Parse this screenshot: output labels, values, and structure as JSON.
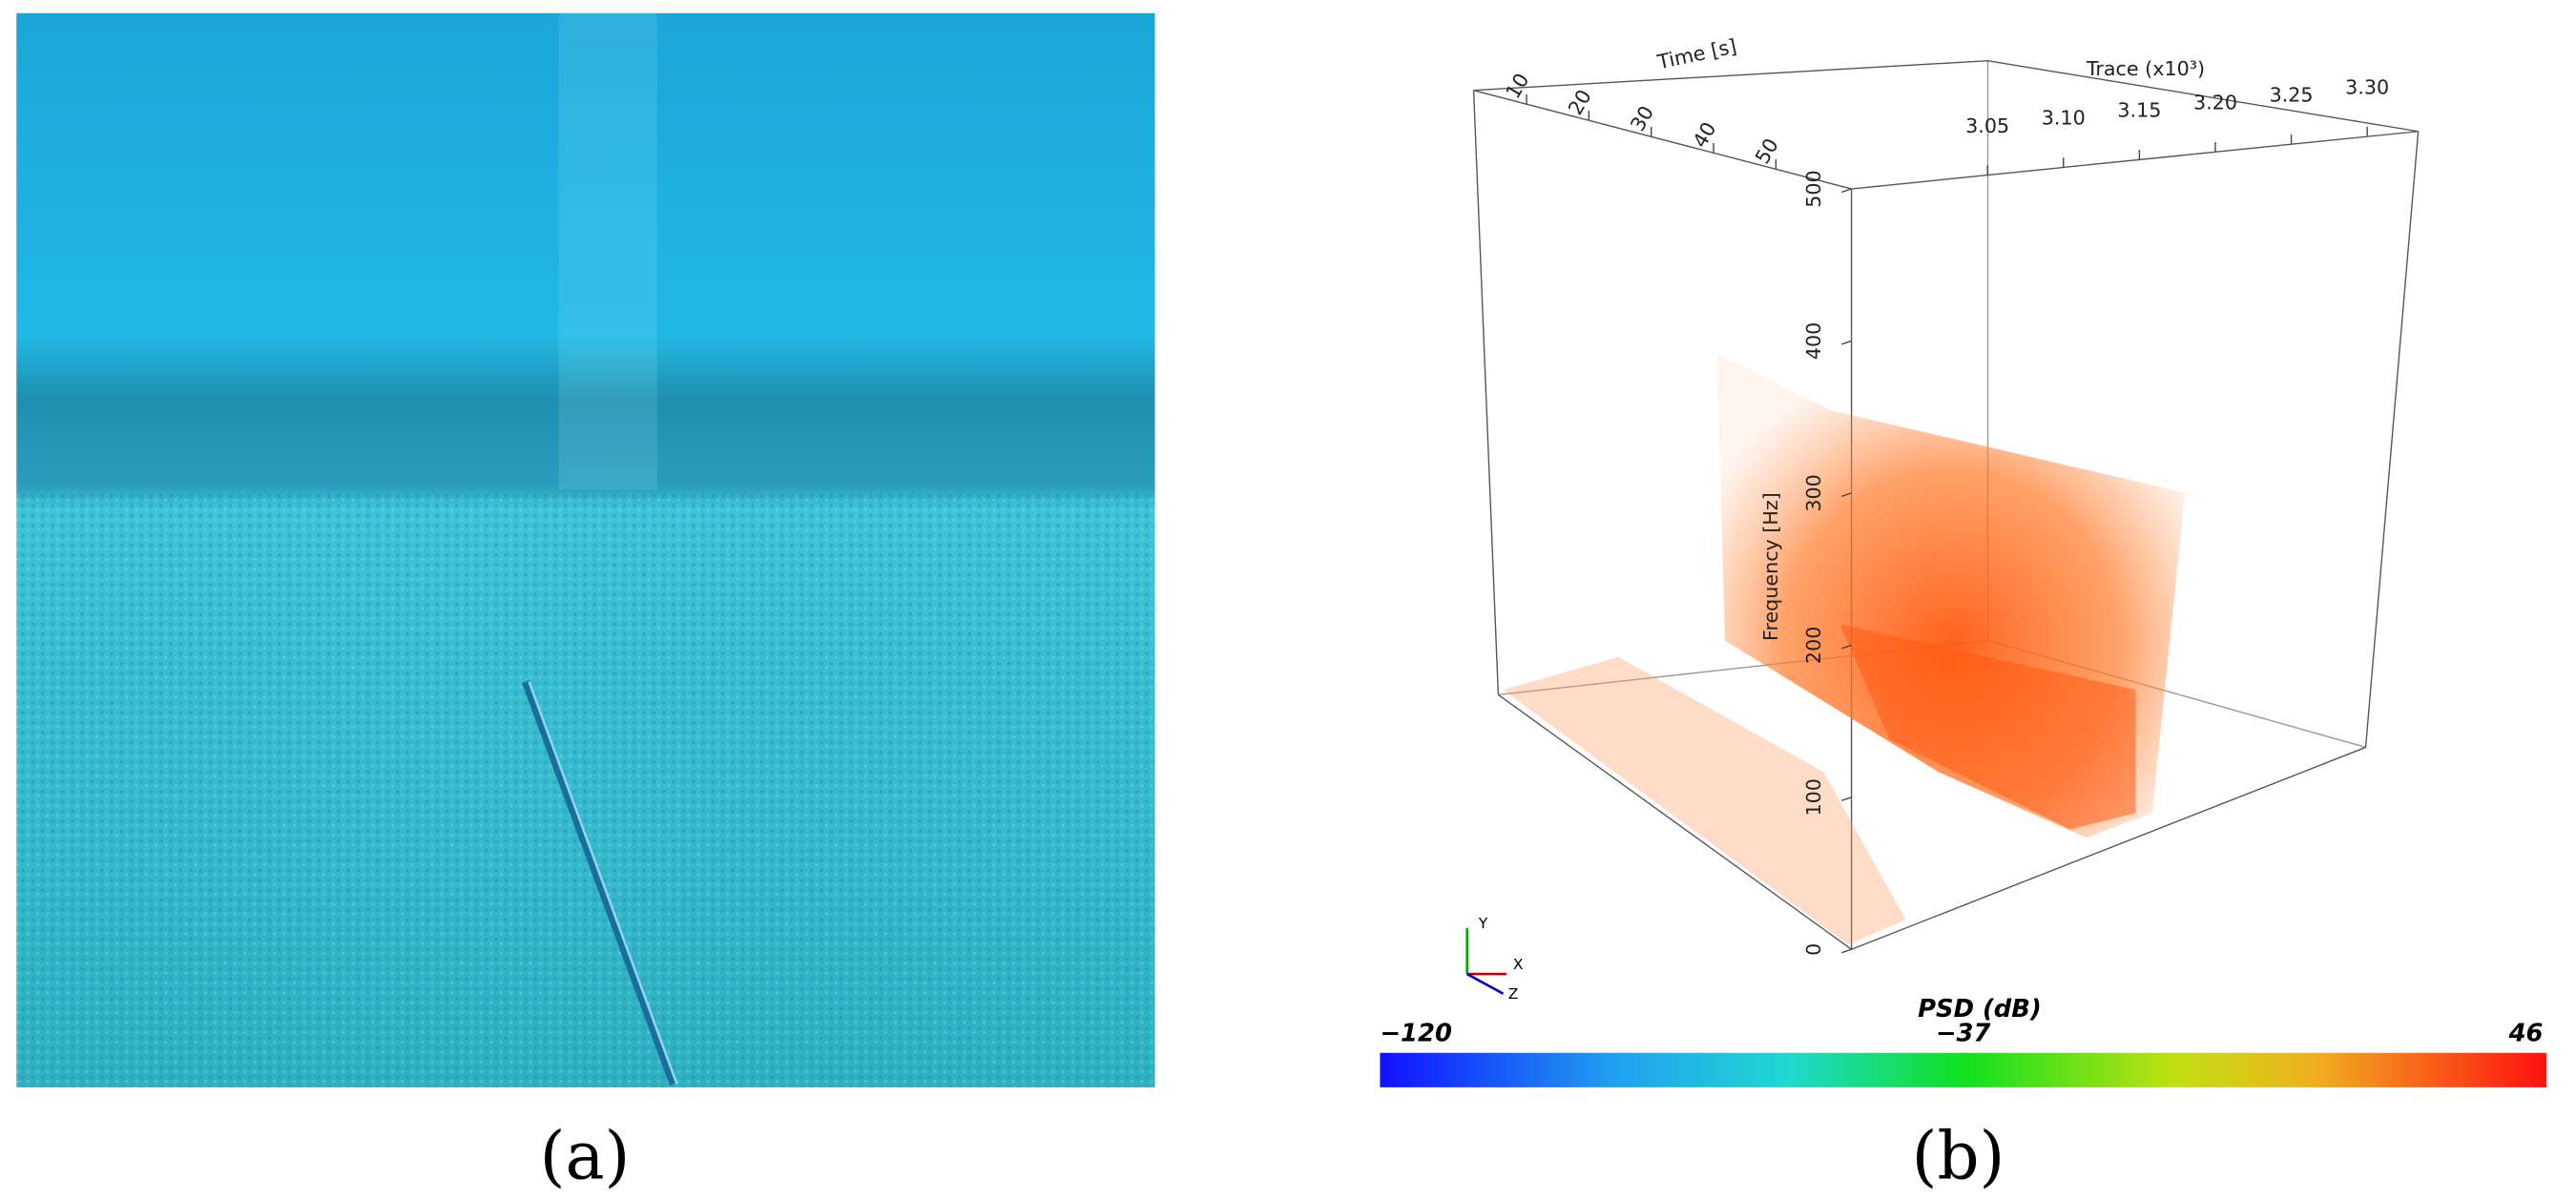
{
  "panel_a": {
    "label": "(a)"
  },
  "panel_b": {
    "label": "(b)",
    "time_axis": {
      "label": "Time [s]",
      "ticks": [
        "10",
        "20",
        "30",
        "40",
        "50"
      ]
    },
    "trace_axis": {
      "label": "Trace (x10³)",
      "ticks": [
        "3.05",
        "3.10",
        "3.15",
        "3.20",
        "3.25",
        "3.30"
      ]
    },
    "frequency_axis": {
      "label": "Frequency [Hz]",
      "ticks": [
        "0",
        "100",
        "200",
        "300",
        "400",
        "500"
      ]
    },
    "orientation_labels": [
      "Y",
      "X",
      "Z"
    ],
    "colorbar": {
      "title": "PSD (dB)",
      "labels": [
        "−120",
        "−37",
        "46"
      ]
    }
  }
}
